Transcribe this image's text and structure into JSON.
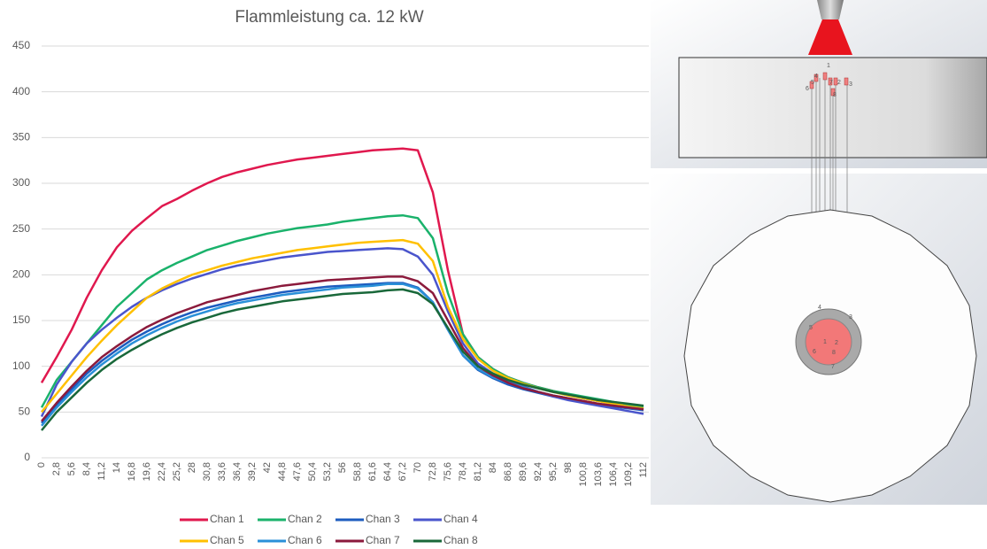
{
  "chart_data": {
    "type": "line",
    "title": "Flammleistung ca. 12 kW",
    "categories": [
      "0",
      "2,8",
      "5,6",
      "8,4",
      "11,2",
      "14",
      "16,8",
      "19,6",
      "22,4",
      "25,2",
      "28",
      "30,8",
      "33,6",
      "36,4",
      "39,2",
      "42",
      "44,8",
      "47,6",
      "50,4",
      "53,2",
      "56",
      "58,8",
      "61,6",
      "64,4",
      "67,2",
      "70",
      "72,8",
      "75,6",
      "78,4",
      "81,2",
      "84",
      "86,8",
      "89,6",
      "92,4",
      "95,2",
      "98",
      "100,8",
      "103,6",
      "106,4",
      "109,2",
      "112"
    ],
    "ylim": [
      0,
      450
    ],
    "yticks": [
      0,
      50,
      100,
      150,
      200,
      250,
      300,
      350,
      400,
      450
    ],
    "grid": true,
    "series": [
      {
        "name": "Chan 1",
        "color": "#e0184e",
        "values": [
          82,
          110,
          140,
          175,
          205,
          230,
          248,
          262,
          275,
          283,
          292,
          300,
          307,
          312,
          316,
          320,
          323,
          326,
          328,
          330,
          332,
          334,
          336,
          337,
          338,
          336,
          290,
          205,
          135,
          110,
          97,
          88,
          82,
          77,
          73,
          69,
          65,
          62,
          59,
          56,
          54
        ]
      },
      {
        "name": "Chan 2",
        "color": "#1ab26b",
        "values": [
          55,
          85,
          105,
          125,
          145,
          165,
          180,
          195,
          205,
          213,
          220,
          227,
          232,
          237,
          241,
          245,
          248,
          251,
          253,
          255,
          258,
          260,
          262,
          264,
          265,
          262,
          240,
          180,
          135,
          110,
          97,
          88,
          82,
          77,
          73,
          70,
          67,
          64,
          61,
          58,
          56
        ]
      },
      {
        "name": "Chan 3",
        "color": "#1d5cbf",
        "values": [
          38,
          58,
          75,
          92,
          106,
          118,
          129,
          138,
          146,
          153,
          159,
          164,
          168,
          172,
          175,
          178,
          181,
          183,
          185,
          187,
          188,
          189,
          190,
          191,
          191,
          186,
          170,
          140,
          112,
          96,
          87,
          80,
          75,
          71,
          67,
          64,
          61,
          58,
          56,
          54,
          52
        ]
      },
      {
        "name": "Chan 4",
        "color": "#4a55cc",
        "values": [
          45,
          80,
          105,
          125,
          140,
          153,
          165,
          175,
          183,
          190,
          196,
          201,
          206,
          210,
          213,
          216,
          219,
          221,
          223,
          225,
          226,
          227,
          228,
          229,
          228,
          220,
          200,
          160,
          125,
          103,
          92,
          84,
          78,
          72,
          67,
          63,
          60,
          57,
          54,
          51,
          48
        ]
      },
      {
        "name": "Chan 5",
        "color": "#ffc000",
        "values": [
          50,
          70,
          90,
          110,
          128,
          145,
          160,
          175,
          185,
          193,
          200,
          205,
          210,
          214,
          218,
          221,
          224,
          227,
          229,
          231,
          233,
          235,
          236,
          237,
          238,
          234,
          215,
          165,
          130,
          108,
          95,
          87,
          81,
          76,
          72,
          68,
          65,
          62,
          59,
          56,
          54
        ]
      },
      {
        "name": "Chan 6",
        "color": "#2a90d8",
        "values": [
          35,
          55,
          72,
          88,
          102,
          114,
          125,
          134,
          142,
          149,
          155,
          160,
          165,
          169,
          172,
          175,
          178,
          180,
          182,
          184,
          186,
          187,
          188,
          190,
          190,
          185,
          170,
          140,
          112,
          97,
          88,
          82,
          77,
          72,
          68,
          65,
          62,
          59,
          57,
          55,
          53
        ]
      },
      {
        "name": "Chan 7",
        "color": "#8b1a3c",
        "values": [
          40,
          60,
          78,
          95,
          110,
          122,
          133,
          143,
          151,
          158,
          164,
          170,
          174,
          178,
          182,
          185,
          188,
          190,
          192,
          194,
          195,
          196,
          197,
          198,
          198,
          193,
          180,
          150,
          120,
          100,
          90,
          82,
          76,
          72,
          68,
          65,
          62,
          59,
          57,
          55,
          53
        ]
      },
      {
        "name": "Chan 8",
        "color": "#19683a",
        "values": [
          30,
          50,
          66,
          82,
          96,
          108,
          118,
          127,
          135,
          142,
          148,
          153,
          158,
          162,
          165,
          168,
          171,
          173,
          175,
          177,
          179,
          180,
          181,
          183,
          184,
          180,
          168,
          142,
          116,
          100,
          92,
          85,
          80,
          76,
          72,
          69,
          66,
          63,
          61,
          59,
          57
        ]
      }
    ]
  },
  "diagram": {
    "top_labels": [
      "1",
      "4",
      "5",
      "6",
      "7",
      "2",
      "8",
      "3"
    ],
    "bottom_labels": [
      "4",
      "3",
      "5",
      "1",
      "6",
      "2",
      "8",
      "7"
    ]
  }
}
